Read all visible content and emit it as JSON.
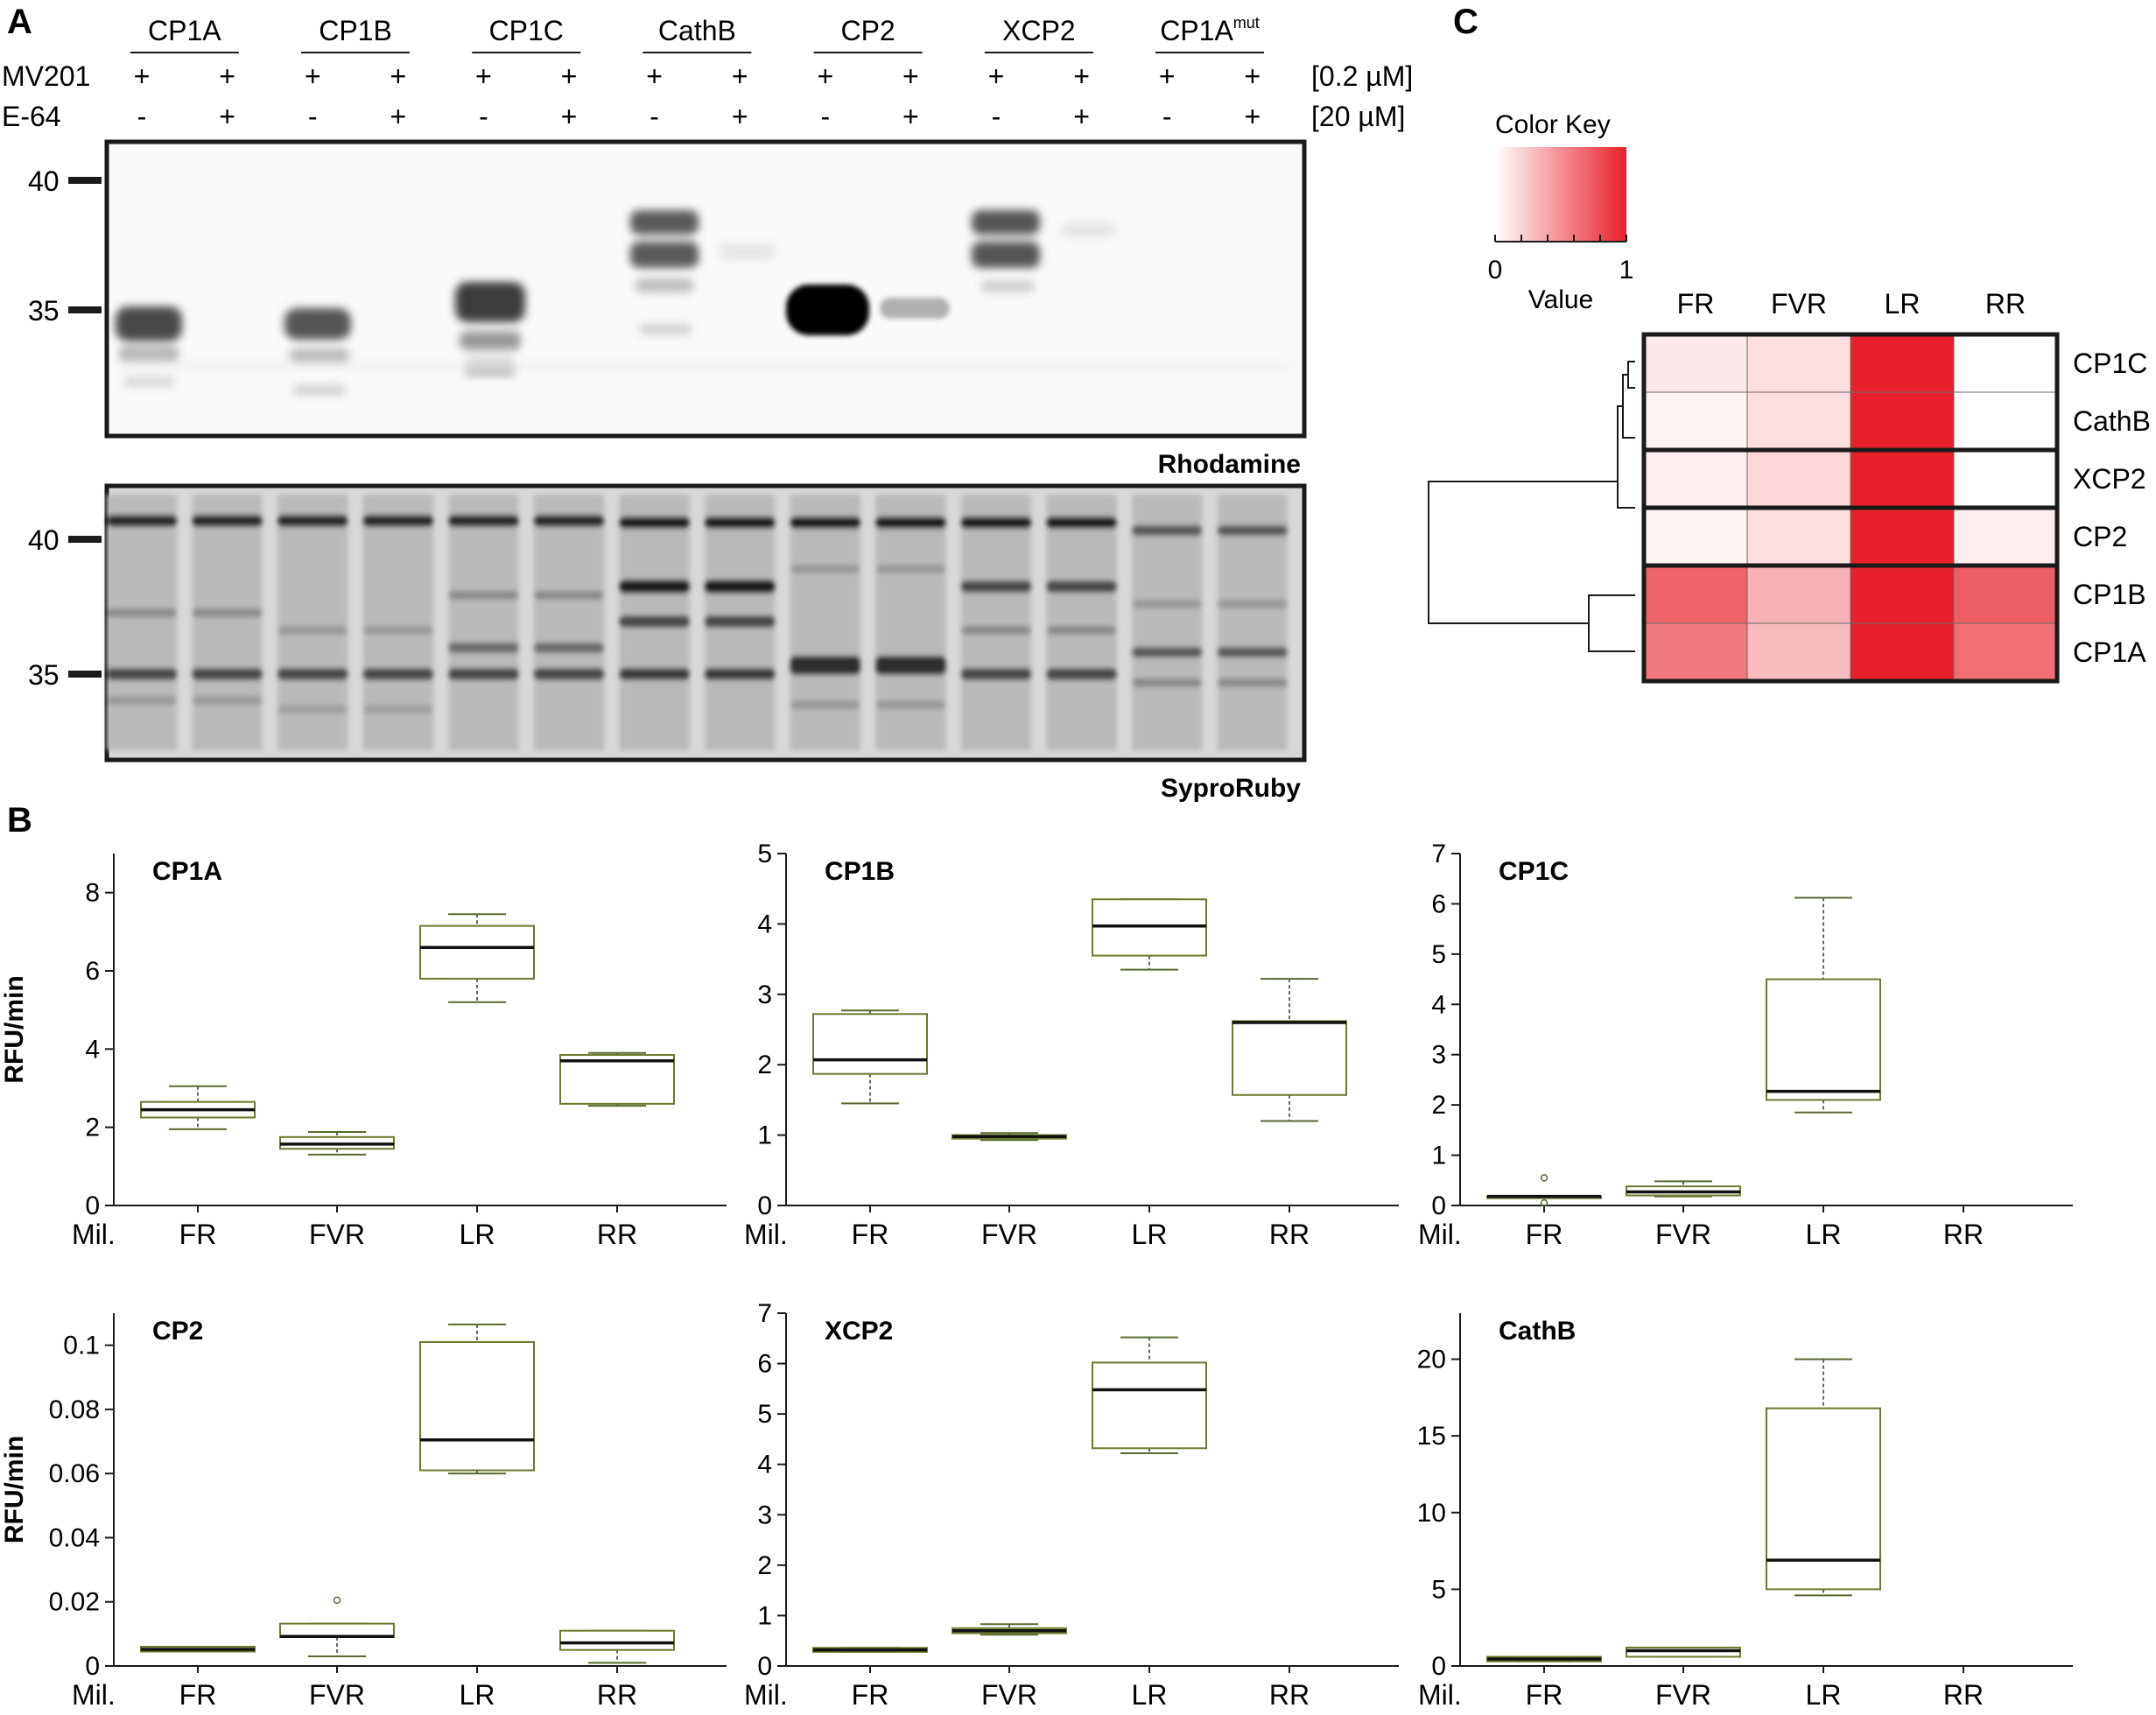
{
  "panels": {
    "a": "A",
    "b": "B",
    "c": "C"
  },
  "panel_a": {
    "lanes": [
      "CP1A",
      "CP1B",
      "CP1C",
      "CathB",
      "CP2",
      "XCP2",
      "CP1A"
    ],
    "mut_superscript": "mut",
    "reagents": [
      {
        "name": "MV201",
        "conc": "[0.2 µM]",
        "marks": [
          "+",
          "+",
          "+",
          "+",
          "+",
          "+",
          "+",
          "+",
          "+",
          "+",
          "+",
          "+",
          "+",
          "+"
        ]
      },
      {
        "name": "E-64",
        "conc": "[20 µM]",
        "marks": [
          "-",
          "+",
          "-",
          "+",
          "-",
          "+",
          "-",
          "+",
          "-",
          "+",
          "-",
          "+",
          "-",
          "+"
        ]
      }
    ],
    "gel_top": {
      "label": "Rhodamine",
      "mw": [
        "40",
        "35"
      ]
    },
    "gel_bottom": {
      "label": "SyproRuby",
      "mw": [
        "40",
        "35"
      ]
    }
  },
  "panel_c": {
    "key_title": "Color Key",
    "key_min": "0",
    "key_max": "1",
    "key_label": "Value",
    "low_color": "#ffffff",
    "high_color": "#e8202a",
    "columns": [
      "FR",
      "FVR",
      "LR",
      "RR"
    ],
    "rows": [
      "CP1C",
      "CathB",
      "XCP2",
      "CP2",
      "CP1B",
      "CP1A"
    ],
    "values": [
      [
        0.1,
        0.15,
        1.0,
        0.0
      ],
      [
        0.05,
        0.15,
        1.0,
        0.0
      ],
      [
        0.08,
        0.18,
        1.0,
        0.0
      ],
      [
        0.05,
        0.15,
        1.0,
        0.08
      ],
      [
        0.7,
        0.35,
        1.0,
        0.72
      ],
      [
        0.6,
        0.3,
        1.0,
        0.65
      ]
    ]
  },
  "chart_data": [
    {
      "type": "box",
      "title": "CP1A",
      "ylabel": "RFU/min",
      "xlabel": "",
      "x_prefix": "Mil.",
      "categories": [
        "FR",
        "FVR",
        "LR",
        "RR"
      ],
      "ylim": [
        0,
        9
      ],
      "yticks": [
        "0",
        "2",
        "4",
        "6",
        "8"
      ],
      "boxes": [
        {
          "min": 1.95,
          "q1": 2.25,
          "median": 2.45,
          "q3": 2.65,
          "max": 3.05
        },
        {
          "min": 1.3,
          "q1": 1.45,
          "median": 1.57,
          "q3": 1.75,
          "max": 1.88
        },
        {
          "min": 5.2,
          "q1": 5.8,
          "median": 6.6,
          "q3": 7.15,
          "max": 7.45
        },
        {
          "min": 2.55,
          "q1": 2.6,
          "median": 3.7,
          "q3": 3.85,
          "max": 3.9
        }
      ],
      "outliers": []
    },
    {
      "type": "box",
      "title": "CP1B",
      "ylabel": "",
      "xlabel": "",
      "x_prefix": "Mil.",
      "categories": [
        "FR",
        "FVR",
        "LR",
        "RR"
      ],
      "ylim": [
        0,
        5
      ],
      "yticks": [
        "0",
        "1",
        "2",
        "3",
        "4",
        "5"
      ],
      "boxes": [
        {
          "min": 1.45,
          "q1": 1.87,
          "median": 2.07,
          "q3": 2.72,
          "max": 2.77
        },
        {
          "min": 0.93,
          "q1": 0.95,
          "median": 0.98,
          "q3": 1.0,
          "max": 1.03
        },
        {
          "min": 3.35,
          "q1": 3.55,
          "median": 3.97,
          "q3": 4.35,
          "max": 4.35
        },
        {
          "min": 1.2,
          "q1": 1.57,
          "median": 2.6,
          "q3": 2.62,
          "max": 3.22
        }
      ],
      "outliers": []
    },
    {
      "type": "box",
      "title": "CP1C",
      "ylabel": "",
      "xlabel": "",
      "x_prefix": "Mil.",
      "categories": [
        "FR",
        "FVR",
        "LR",
        "RR"
      ],
      "ylim": [
        0,
        7
      ],
      "yticks": [
        "0",
        "1",
        "2",
        "3",
        "4",
        "5",
        "6",
        "7"
      ],
      "boxes": [
        {
          "min": 0.15,
          "q1": 0.15,
          "median": 0.18,
          "q3": 0.18,
          "max": 0.18
        },
        {
          "min": 0.18,
          "q1": 0.2,
          "median": 0.27,
          "q3": 0.38,
          "max": 0.48
        },
        {
          "min": 1.85,
          "q1": 2.1,
          "median": 2.27,
          "q3": 4.5,
          "max": 6.12
        },
        null
      ],
      "outliers": [
        {
          "category": "FR",
          "value": 0.55
        },
        {
          "category": "FR",
          "value": 0.05
        }
      ]
    },
    {
      "type": "box",
      "title": "CP2",
      "ylabel": "RFU/min",
      "xlabel": "",
      "x_prefix": "Mil.",
      "categories": [
        "FR",
        "FVR",
        "LR",
        "RR"
      ],
      "ylim": [
        0,
        0.11
      ],
      "yticks": [
        "0",
        "0.02",
        "0.04",
        "0.06",
        "0.08",
        "0.1"
      ],
      "boxes": [
        {
          "min": 0.0045,
          "q1": 0.0045,
          "median": 0.0052,
          "q3": 0.006,
          "max": 0.006
        },
        {
          "min": 0.003,
          "q1": 0.009,
          "median": 0.0092,
          "q3": 0.0132,
          "max": 0.0132
        },
        {
          "min": 0.06,
          "q1": 0.061,
          "median": 0.0705,
          "q3": 0.101,
          "max": 0.1065
        },
        {
          "min": 0.001,
          "q1": 0.005,
          "median": 0.0072,
          "q3": 0.011,
          "max": 0.011
        }
      ],
      "outliers": [
        {
          "category": "FVR",
          "value": 0.0205
        }
      ]
    },
    {
      "type": "box",
      "title": "XCP2",
      "ylabel": "",
      "xlabel": "",
      "x_prefix": "Mil.",
      "categories": [
        "FR",
        "FVR",
        "LR",
        "RR"
      ],
      "ylim": [
        0,
        7
      ],
      "yticks": [
        "0",
        "1",
        "2",
        "3",
        "4",
        "5",
        "6",
        "7"
      ],
      "boxes": [
        {
          "min": 0.28,
          "q1": 0.28,
          "median": 0.32,
          "q3": 0.36,
          "max": 0.36
        },
        {
          "min": 0.62,
          "q1": 0.65,
          "median": 0.7,
          "q3": 0.75,
          "max": 0.83
        },
        {
          "min": 4.22,
          "q1": 4.32,
          "median": 5.48,
          "q3": 6.02,
          "max": 6.52
        },
        null
      ],
      "outliers": []
    },
    {
      "type": "box",
      "title": "CathB",
      "ylabel": "",
      "xlabel": "",
      "x_prefix": "Mil.",
      "categories": [
        "FR",
        "FVR",
        "LR",
        "RR"
      ],
      "ylim": [
        0,
        23
      ],
      "yticks": [
        "0",
        "5",
        "10",
        "15",
        "20"
      ],
      "boxes": [
        {
          "min": 0.3,
          "q1": 0.3,
          "median": 0.45,
          "q3": 0.6,
          "max": 0.6
        },
        {
          "min": 0.6,
          "q1": 0.6,
          "median": 1.0,
          "q3": 1.2,
          "max": 1.2
        },
        {
          "min": 4.6,
          "q1": 5.0,
          "median": 6.9,
          "q3": 16.8,
          "max": 20.0
        },
        null
      ],
      "outliers": []
    }
  ]
}
